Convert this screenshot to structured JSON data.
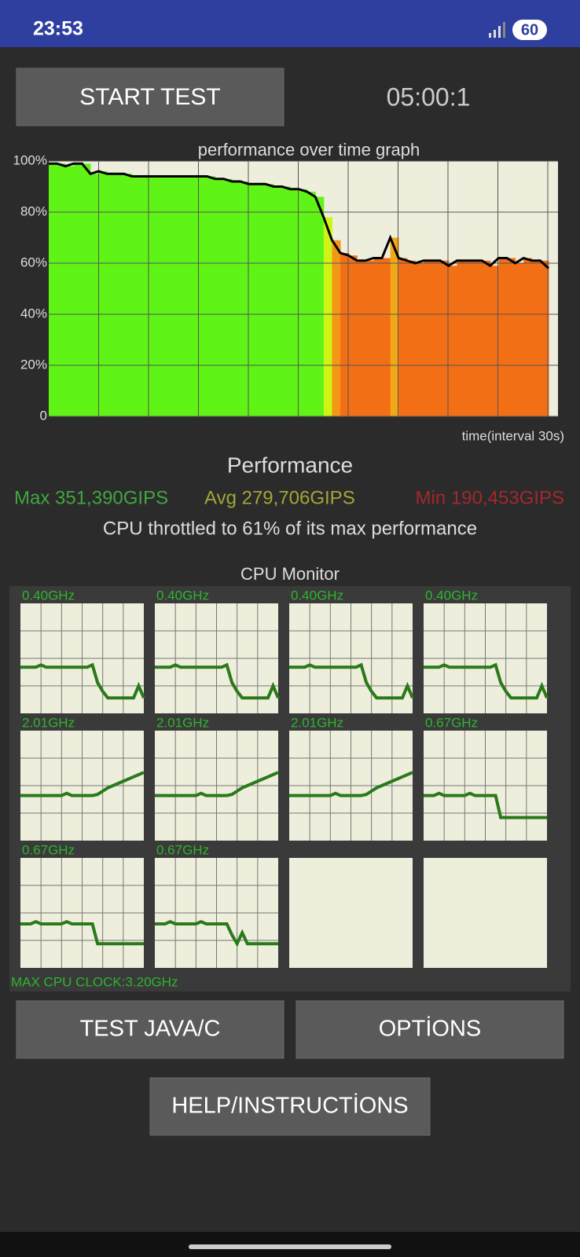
{
  "status_bar": {
    "time": "23:53",
    "battery": "60"
  },
  "start_button": "START TEST",
  "timer": "05:00:1",
  "chart_data": {
    "type": "line",
    "title": "performance over time graph",
    "x_label": "time(interval 30s)",
    "color": "#000000",
    "values": [
      99,
      99,
      98,
      99,
      99,
      95,
      96,
      95,
      95,
      95,
      94,
      94,
      94,
      94,
      94,
      94,
      94,
      94,
      94,
      94,
      93,
      93,
      92,
      92,
      91,
      91,
      91,
      90,
      90,
      89,
      89,
      88,
      86,
      78,
      69,
      64,
      63,
      61,
      61,
      62,
      62,
      70,
      62,
      61,
      60,
      61,
      61,
      61,
      59,
      61,
      61,
      61,
      61,
      59,
      62,
      62,
      60,
      62,
      61,
      61,
      58
    ],
    "ylim": [
      0,
      100
    ],
    "yticks": [
      0,
      {
        "value": 20,
        "label": "20%"
      },
      {
        "value": 40,
        "label": "40%"
      },
      {
        "value": 60,
        "label": "60%"
      },
      {
        "value": 80,
        "label": "80%"
      },
      {
        "value": 100,
        "label": "100%"
      }
    ],
    "grid": true
  },
  "performance": {
    "title": "Performance",
    "max": "Max 351,390GIPS",
    "avg": "Avg 279,706GIPS",
    "min": "Min 190,453GIPS",
    "throttle": "CPU throttled to 61% of its max performance"
  },
  "cpu_monitor": {
    "title": "CPU Monitor",
    "ylim": [
      0,
      100
    ],
    "cells": [
      {
        "label": "0.40GHz",
        "values": [
          42,
          42,
          42,
          42,
          44,
          42,
          42,
          42,
          42,
          42,
          42,
          42,
          42,
          42,
          44,
          28,
          20,
          14,
          14,
          14,
          14,
          14,
          14,
          25,
          14
        ]
      },
      {
        "label": "0.40GHz",
        "values": [
          42,
          42,
          42,
          42,
          44,
          42,
          42,
          42,
          42,
          42,
          42,
          42,
          42,
          42,
          44,
          28,
          20,
          14,
          14,
          14,
          14,
          14,
          14,
          25,
          14
        ]
      },
      {
        "label": "0.40GHz",
        "values": [
          42,
          42,
          42,
          42,
          44,
          42,
          42,
          42,
          42,
          42,
          42,
          42,
          42,
          42,
          44,
          28,
          20,
          14,
          14,
          14,
          14,
          14,
          14,
          25,
          14
        ]
      },
      {
        "label": "0.40GHz",
        "values": [
          42,
          42,
          42,
          42,
          44,
          42,
          42,
          42,
          42,
          42,
          42,
          42,
          42,
          42,
          44,
          28,
          20,
          14,
          14,
          14,
          14,
          14,
          14,
          25,
          14
        ]
      },
      {
        "label": "2.01GHz",
        "values": [
          41,
          41,
          41,
          41,
          41,
          41,
          41,
          41,
          41,
          43,
          41,
          41,
          41,
          41,
          41,
          42,
          45,
          48,
          50,
          52,
          54,
          56,
          58,
          60,
          62
        ]
      },
      {
        "label": "2.01GHz",
        "values": [
          41,
          41,
          41,
          41,
          41,
          41,
          41,
          41,
          41,
          43,
          41,
          41,
          41,
          41,
          41,
          42,
          45,
          48,
          50,
          52,
          54,
          56,
          58,
          60,
          62
        ]
      },
      {
        "label": "2.01GHz",
        "values": [
          41,
          41,
          41,
          41,
          41,
          41,
          41,
          41,
          41,
          43,
          41,
          41,
          41,
          41,
          41,
          42,
          45,
          48,
          50,
          52,
          54,
          56,
          58,
          60,
          62
        ]
      },
      {
        "label": "0.67GHz",
        "values": [
          41,
          41,
          41,
          43,
          41,
          41,
          41,
          41,
          41,
          43,
          41,
          41,
          41,
          41,
          41,
          21,
          21,
          21,
          21,
          21,
          21,
          21,
          21,
          21,
          21
        ]
      },
      {
        "label": "0.67GHz",
        "values": [
          40,
          40,
          40,
          42,
          40,
          40,
          40,
          40,
          40,
          42,
          40,
          40,
          40,
          40,
          40,
          22,
          22,
          22,
          22,
          22,
          22,
          22,
          22,
          22,
          22
        ]
      },
      {
        "label": "0.67GHz",
        "values": [
          40,
          40,
          40,
          42,
          40,
          40,
          40,
          40,
          40,
          42,
          40,
          40,
          40,
          40,
          40,
          30,
          22,
          32,
          22,
          22,
          22,
          22,
          22,
          22,
          22
        ]
      }
    ],
    "max_clock": "MAX CPU CLOCK:3.20GHz"
  },
  "buttons": {
    "test": "TEST JAVA/C",
    "options": "OPTİONS",
    "help": "HELP/INSTRUCTİONS"
  }
}
